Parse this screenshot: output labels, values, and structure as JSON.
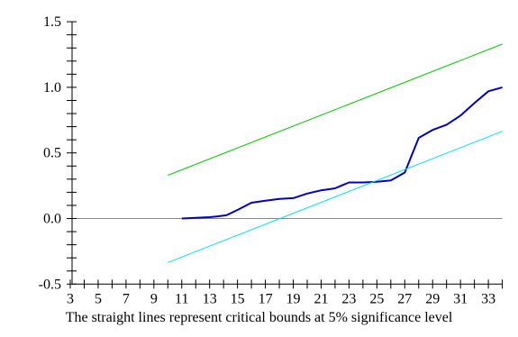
{
  "chart_data": {
    "type": "line",
    "caption": "The straight lines represent critical bounds at 5% significance level",
    "xlim": [
      3,
      34
    ],
    "ylim": [
      -0.5,
      1.5
    ],
    "x_ticks": [
      3,
      5,
      7,
      9,
      11,
      13,
      15,
      17,
      19,
      21,
      23,
      25,
      27,
      29,
      31,
      33
    ],
    "y_ticks": [
      -0.5,
      0.0,
      0.5,
      1.0,
      1.5
    ],
    "y_tick_labels": [
      "-0.5",
      "0.0",
      "0.5",
      "1.0",
      "1.5"
    ],
    "reference_line": {
      "y": 0.0,
      "color": "#888888"
    },
    "series": [
      {
        "color": "#0000cc",
        "x": [
          11,
          12,
          13,
          13.5,
          14.2,
          15,
          16,
          17,
          18,
          19,
          20,
          21,
          22,
          23,
          24,
          25,
          26,
          27,
          28,
          29,
          30,
          31,
          32,
          33,
          34
        ],
        "y": [
          0.0,
          0.005,
          0.01,
          0.015,
          0.025,
          0.065,
          0.12,
          0.135,
          0.15,
          0.155,
          0.19,
          0.215,
          0.23,
          0.275,
          0.275,
          0.28,
          0.29,
          0.35,
          0.615,
          0.675,
          0.715,
          0.785,
          0.88,
          0.97,
          1.0
        ]
      },
      {
        "color": "#00cc00",
        "x": [
          10,
          34
        ],
        "y": [
          0.33,
          1.33
        ]
      },
      {
        "color": "#00e5ee",
        "x": [
          10,
          34
        ],
        "y": [
          -0.335,
          0.665
        ]
      }
    ]
  }
}
